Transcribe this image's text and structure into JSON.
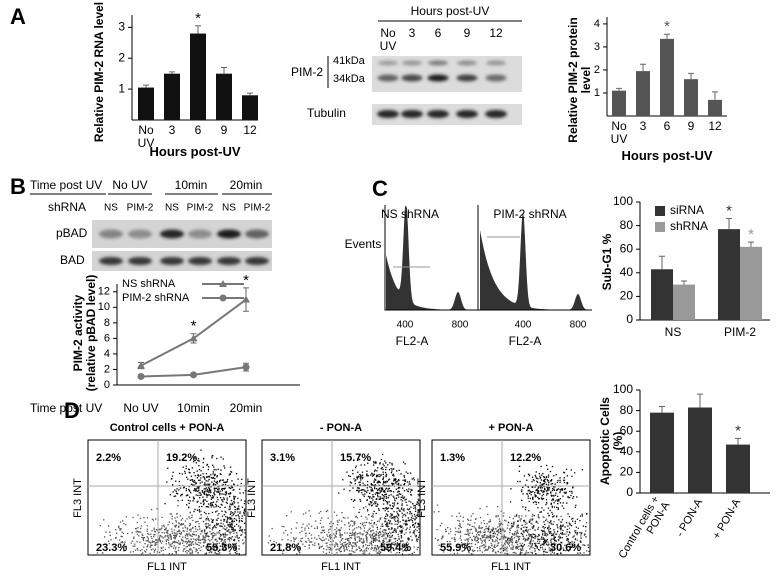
{
  "panel_labels": [
    "A",
    "B",
    "C",
    "D"
  ],
  "blot_a": {
    "title": "Hours post-UV",
    "lanes": [
      "No UV",
      "3",
      "6",
      "9",
      "12"
    ],
    "protein": "PIM-2",
    "markers": [
      "41kDa",
      "34kDa"
    ],
    "control": "Tubulin"
  },
  "blot_b": {
    "time_label": "Time post UV",
    "times": [
      "No UV",
      "10min",
      "20min"
    ],
    "lane_label": "shRNA",
    "lanes": [
      "NS",
      "PIM-2",
      "NS",
      "PIM-2",
      "NS",
      "PIM-2"
    ],
    "rows": [
      "pBAD",
      "BAD"
    ]
  },
  "facs_c": {
    "ylabel": "Events",
    "panels": [
      {
        "title": "NS shRNA",
        "xlabel": "FL2-A",
        "ticks": [
          400,
          800
        ]
      },
      {
        "title": "PIM-2 shRNA",
        "xlabel": "FL2-A",
        "ticks": [
          400,
          800
        ]
      }
    ]
  },
  "facs_d": {
    "panels": [
      {
        "title": "Control cells + PON-A",
        "ylabel": "FL3 INT",
        "xlabel": "FL1 INT",
        "quadrants": [
          "2.2%",
          "19.2%",
          "23.3%",
          "55.3%"
        ]
      },
      {
        "title": "- PON-A",
        "ylabel": "FL3 INT",
        "xlabel": "FL1 INT",
        "quadrants": [
          "3.1%",
          "15.7%",
          "21.8%",
          "59.4%"
        ]
      },
      {
        "title": "+ PON-A",
        "ylabel": "FL3 INT",
        "xlabel": "FL1 INT",
        "quadrants": [
          "1.3%",
          "12.2%",
          "55.9%",
          "30.6%"
        ]
      }
    ]
  },
  "chart_data": [
    {
      "type": "bar",
      "ylabel": "Relative PIM-2 RNA level",
      "xlabel": "Hours post-UV",
      "categories": [
        "No UV",
        "3",
        "6",
        "9",
        "12"
      ],
      "values": [
        1.05,
        1.5,
        2.8,
        1.5,
        0.8
      ],
      "errors": [
        0.08,
        0.06,
        0.25,
        0.2,
        0.07
      ],
      "significance": [
        null,
        null,
        "*",
        null,
        null
      ],
      "color": "#111111",
      "ylim": [
        0,
        3.4
      ],
      "yticks": [
        1,
        2,
        3
      ]
    },
    {
      "type": "bar",
      "ylabel": "Relative PIM-2 protein level",
      "xlabel": "Hours post-UV",
      "categories": [
        "No UV",
        "3",
        "6",
        "9",
        "12"
      ],
      "values": [
        1.1,
        1.95,
        3.35,
        1.6,
        0.7
      ],
      "errors": [
        0.1,
        0.3,
        0.2,
        0.25,
        0.35
      ],
      "significance": [
        null,
        null,
        "*",
        null,
        null
      ],
      "color": "#555555",
      "ylim": [
        0,
        4.3
      ],
      "yticks": [
        1,
        2,
        3,
        4
      ]
    },
    {
      "type": "line",
      "ylabel": "PIM-2 activity (relative pBAD level)",
      "xlabel": "Time post UV",
      "x": [
        "No UV",
        "10min",
        "20min"
      ],
      "series": [
        {
          "name": "NS shRNA",
          "marker": "triangle",
          "color": "#777777",
          "values": [
            2.5,
            6,
            11
          ],
          "errors": [
            0.4,
            0.6,
            1.5
          ],
          "significance": [
            null,
            "*",
            "*"
          ]
        },
        {
          "name": "PIM-2 shRNA",
          "marker": "circle",
          "color": "#777777",
          "values": [
            1.1,
            1.3,
            2.3
          ],
          "errors": [
            0.2,
            0.2,
            0.5
          ]
        }
      ],
      "ylim": [
        0,
        13
      ],
      "yticks": [
        0,
        2,
        4,
        6,
        8,
        10,
        12
      ]
    },
    {
      "type": "bar",
      "ylabel": "Sub-G1 %",
      "categories": [
        "NS",
        "PIM-2"
      ],
      "series": [
        {
          "name": "siRNA",
          "color": "#333333",
          "values": [
            43,
            77
          ],
          "errors": [
            11,
            9
          ],
          "significance": [
            null,
            "*"
          ]
        },
        {
          "name": "shRNA",
          "color": "#999999",
          "values": [
            30,
            62
          ],
          "errors": [
            3,
            4
          ],
          "significance": [
            null,
            "*"
          ]
        }
      ],
      "ylim": [
        0,
        100
      ],
      "yticks": [
        0,
        20,
        40,
        60,
        80,
        100
      ]
    },
    {
      "type": "bar",
      "ylabel": "Apoptotic Cells (%)",
      "categories": [
        "Control cells + PON-A",
        "- PON-A",
        "+ PON-A"
      ],
      "values": [
        78,
        83,
        47
      ],
      "errors": [
        6,
        13,
        6
      ],
      "significance": [
        null,
        null,
        "*"
      ],
      "color": "#333333",
      "ylim": [
        0,
        100
      ],
      "yticks": [
        0,
        20,
        40,
        60,
        80,
        100
      ]
    }
  ]
}
